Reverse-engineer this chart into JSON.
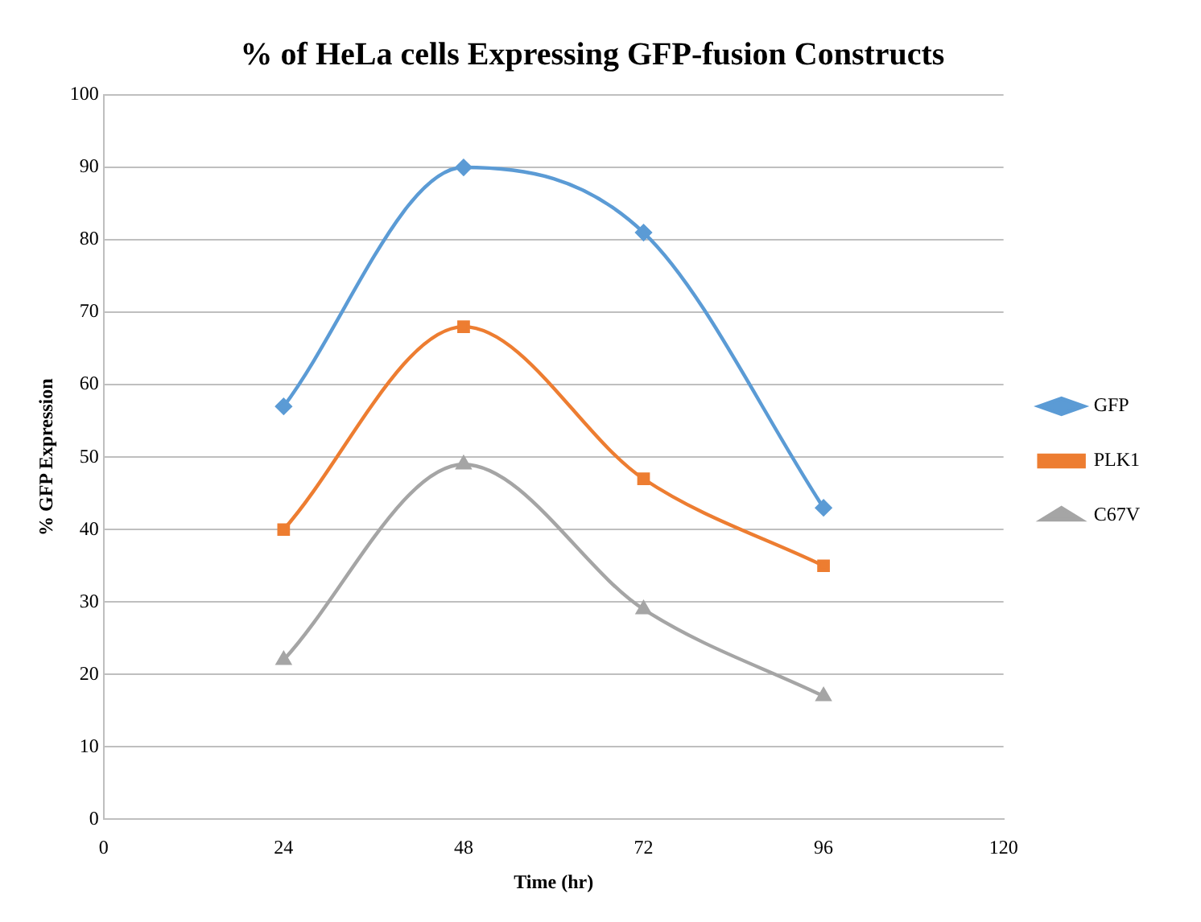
{
  "chart_data": {
    "type": "line",
    "title": "% of HeLa cells Expressing GFP-fusion Constructs",
    "xlabel": "Time (hr)",
    "ylabel": "% GFP Expression",
    "x": [
      24,
      48,
      72,
      96
    ],
    "series": [
      {
        "name": "GFP",
        "color": "#5b9bd5",
        "marker": "diamond",
        "values": [
          57,
          90,
          81,
          43
        ]
      },
      {
        "name": "PLK1",
        "color": "#ed7d31",
        "marker": "square",
        "values": [
          40,
          68,
          47,
          35
        ]
      },
      {
        "name": "C67V",
        "color": "#a5a5a5",
        "marker": "triangle",
        "values": [
          22,
          49,
          29,
          17
        ]
      }
    ],
    "xlim": [
      0,
      120
    ],
    "xticks": [
      0,
      24,
      48,
      72,
      96,
      120
    ],
    "ylim": [
      0,
      100
    ],
    "yticks": [
      0,
      10,
      20,
      30,
      40,
      50,
      60,
      70,
      80,
      90,
      100
    ],
    "grid": "y",
    "legend": "right",
    "line_style": "solid"
  }
}
